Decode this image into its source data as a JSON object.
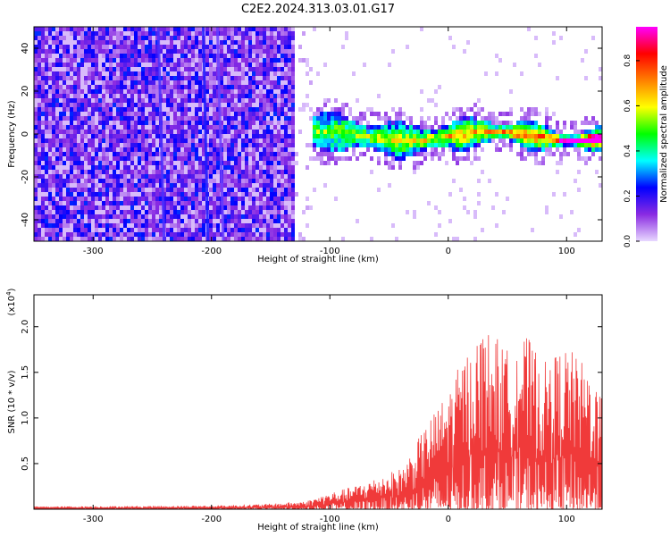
{
  "title": "C2E2.2024.313.03.01.G17",
  "chart_data": [
    {
      "type": "heatmap",
      "xlabel": "Height of straight line (km)",
      "ylabel": "Frequency (Hz)",
      "xlim": [
        -350,
        130
      ],
      "ylim": [
        -50,
        50
      ],
      "xticks": [
        -300,
        -200,
        -100,
        0,
        100
      ],
      "yticks": [
        -40,
        -20,
        0,
        20,
        40
      ],
      "colorbar": {
        "label": "Normalized spectral amplitude",
        "range": [
          0.0,
          0.95
        ],
        "ticks": [
          "0.0",
          "0.2",
          "0.4",
          "0.6",
          "0.8"
        ],
        "tick_values": [
          0.0,
          0.2,
          0.4,
          0.6,
          0.8
        ],
        "colors": [
          "#e8d8ff",
          "#8a2be2",
          "#0000ff",
          "#00ffff",
          "#00ff00",
          "#ffff00",
          "#ff8000",
          "#ff0000",
          "#ff00ff"
        ]
      },
      "regions": {
        "broadband_noise_x": [
          -350,
          -130
        ],
        "signal_band_x": [
          -130,
          130
        ],
        "signal_center_frequency": 0,
        "signal_halfwidth": [
          8,
          4
        ],
        "stripes": [
          {
            "x_top": -207,
            "x_bottom": -203,
            "color": "#1a1aff"
          },
          {
            "x_top": -245,
            "x_bottom": -240,
            "color": "#4a30ff"
          },
          {
            "x_top": -195,
            "x_bottom": -190,
            "color": "#6a40ff"
          }
        ]
      }
    },
    {
      "type": "line",
      "xlabel": "Height of straight line (km)",
      "ylabel": "SNR (10 * v/v)",
      "scale_label": "(x10",
      "scale_exponent": "4",
      "xlim": [
        -350,
        130
      ],
      "ylim": [
        0,
        23500
      ],
      "xticks": [
        -300,
        -200,
        -100,
        0,
        100
      ],
      "yticks": [
        5000,
        10000,
        15000,
        20000
      ],
      "ytick_labels": [
        "0.5",
        "1.0",
        "1.5",
        "2.0"
      ],
      "color": "#f03a3a",
      "envelope": {
        "x": [
          -350,
          -200,
          -150,
          -120,
          -100,
          -80,
          -60,
          -40,
          -30,
          -20,
          -10,
          0,
          10,
          20,
          30,
          40,
          50,
          60,
          70,
          80,
          90,
          100,
          110,
          120,
          130
        ],
        "max": [
          300,
          400,
          600,
          900,
          1800,
          2500,
          3500,
          4500,
          6500,
          9000,
          11000,
          13000,
          16000,
          18000,
          20000,
          19000,
          17500,
          19500,
          18500,
          16000,
          17000,
          18000,
          16500,
          15500,
          12500
        ]
      }
    }
  ]
}
